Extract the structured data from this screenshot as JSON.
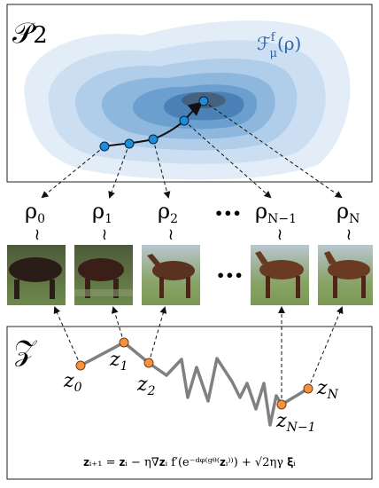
{
  "top_panel": {
    "label": {
      "base": "𝒫",
      "sub": "2"
    },
    "functional": {
      "base": "ℱ",
      "sup": "f",
      "sub": "μ",
      "arg": "(ρ)"
    }
  },
  "rho_labels": [
    {
      "base": "ρ",
      "sub": "0"
    },
    {
      "base": "ρ",
      "sub": "1"
    },
    {
      "base": "ρ",
      "sub": "2"
    },
    {
      "base": "ρ",
      "sub": "N−1"
    },
    {
      "base": "ρ",
      "sub": "N"
    }
  ],
  "ellipsis": "•••",
  "wreath": "≀",
  "bottom_panel": {
    "label": "𝒵",
    "z_labels": [
      {
        "base": "z",
        "sub": "0"
      },
      {
        "base": "z",
        "sub": "1"
      },
      {
        "base": "z",
        "sub": "2"
      },
      {
        "base": "z",
        "sub": "N−1"
      },
      {
        "base": "z",
        "sub": "N"
      }
    ],
    "equation": "𝐳ᵢ₊₁ = 𝐳ᵢ − η∇𝐳ᵢ f′(e⁻ᵈᵠ⁽ᵍᶿ⁽𝐳ᵢ⁾⁾) + √2ηγ 𝛏ᵢ"
  }
}
